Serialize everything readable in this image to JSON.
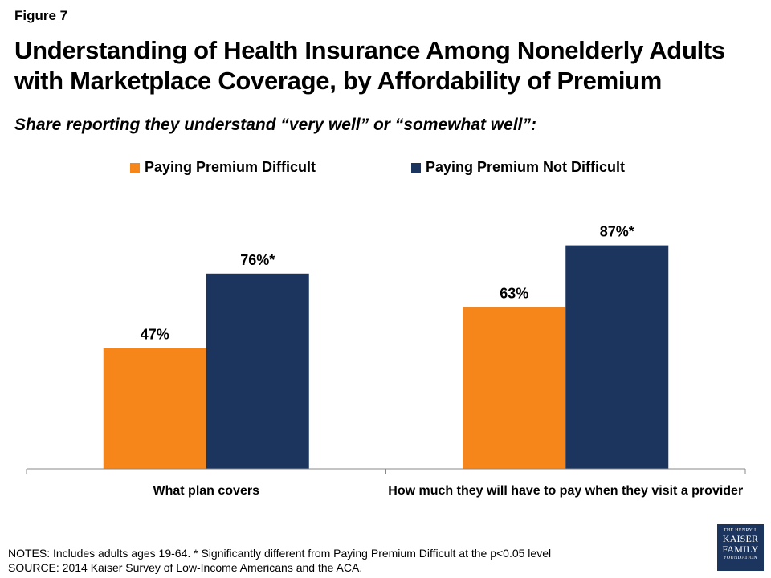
{
  "figure_label": "Figure 7",
  "title": "Understanding of Health Insurance Among Nonelderly Adults with Marketplace Coverage, by Affordability of Premium",
  "subtitle": "Share reporting they understand “very well” or “somewhat well”:",
  "chart_data": {
    "type": "bar",
    "title": "Understanding of Health Insurance Among Nonelderly Adults with Marketplace Coverage, by Affordability of Premium",
    "xlabel": "",
    "ylabel": "",
    "ylim": [
      0,
      100
    ],
    "grid": false,
    "legend_position": "top",
    "categories": [
      "What plan covers",
      "How much they will have to pay when they visit a provider"
    ],
    "series": [
      {
        "name": "Paying Premium Difficult",
        "color": "#f7861a",
        "values": [
          47,
          63
        ],
        "labels": [
          "47%",
          "63%"
        ]
      },
      {
        "name": "Paying Premium Not Difficult",
        "color": "#1c355e",
        "values": [
          76,
          87
        ],
        "labels": [
          "76%*",
          "87%*"
        ]
      }
    ]
  },
  "notes": {
    "line1": "NOTES: Includes adults ages 19-64. * Significantly different from Paying Premium Difficult at the p<0.05 level",
    "line2": "SOURCE: 2014 Kaiser Survey of Low-Income Americans and the ACA."
  },
  "logo": {
    "line1": "THE HENRY J.",
    "line2": "KAISER",
    "line3": "FAMILY",
    "line4": "FOUNDATION"
  }
}
